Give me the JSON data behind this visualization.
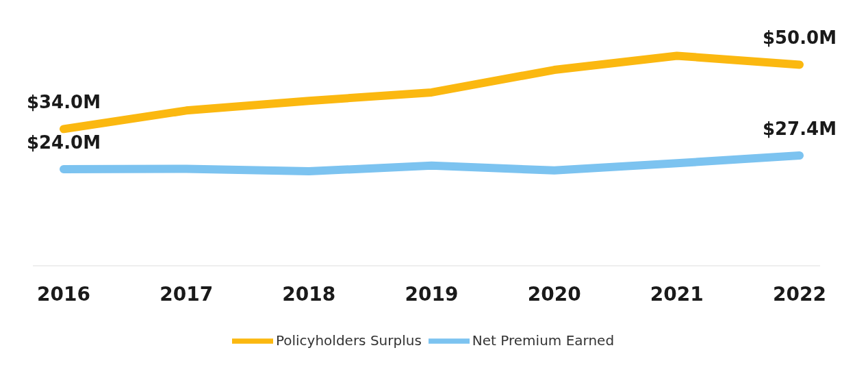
{
  "chart_data": {
    "type": "line",
    "categories": [
      "2016",
      "2017",
      "2018",
      "2019",
      "2020",
      "2021",
      "2022"
    ],
    "series": [
      {
        "name": "Policyholders Surplus",
        "color": "#fbb810",
        "values": [
          34.0,
          38.6,
          41.0,
          43.1,
          48.7,
          52.2,
          50.0
        ],
        "value_labels": [
          "$34.0M",
          null,
          null,
          null,
          null,
          null,
          "$50.0M"
        ]
      },
      {
        "name": "Net Premium Earned",
        "color": "#7cc3f0",
        "values": [
          24.0,
          24.1,
          23.5,
          24.9,
          23.7,
          25.5,
          27.4
        ],
        "value_labels": [
          "$24.0M",
          null,
          null,
          null,
          null,
          null,
          "$27.4M"
        ]
      }
    ],
    "legend": "bottom",
    "marker": "none",
    "line_style": "solid",
    "tick_labels": "x"
  }
}
